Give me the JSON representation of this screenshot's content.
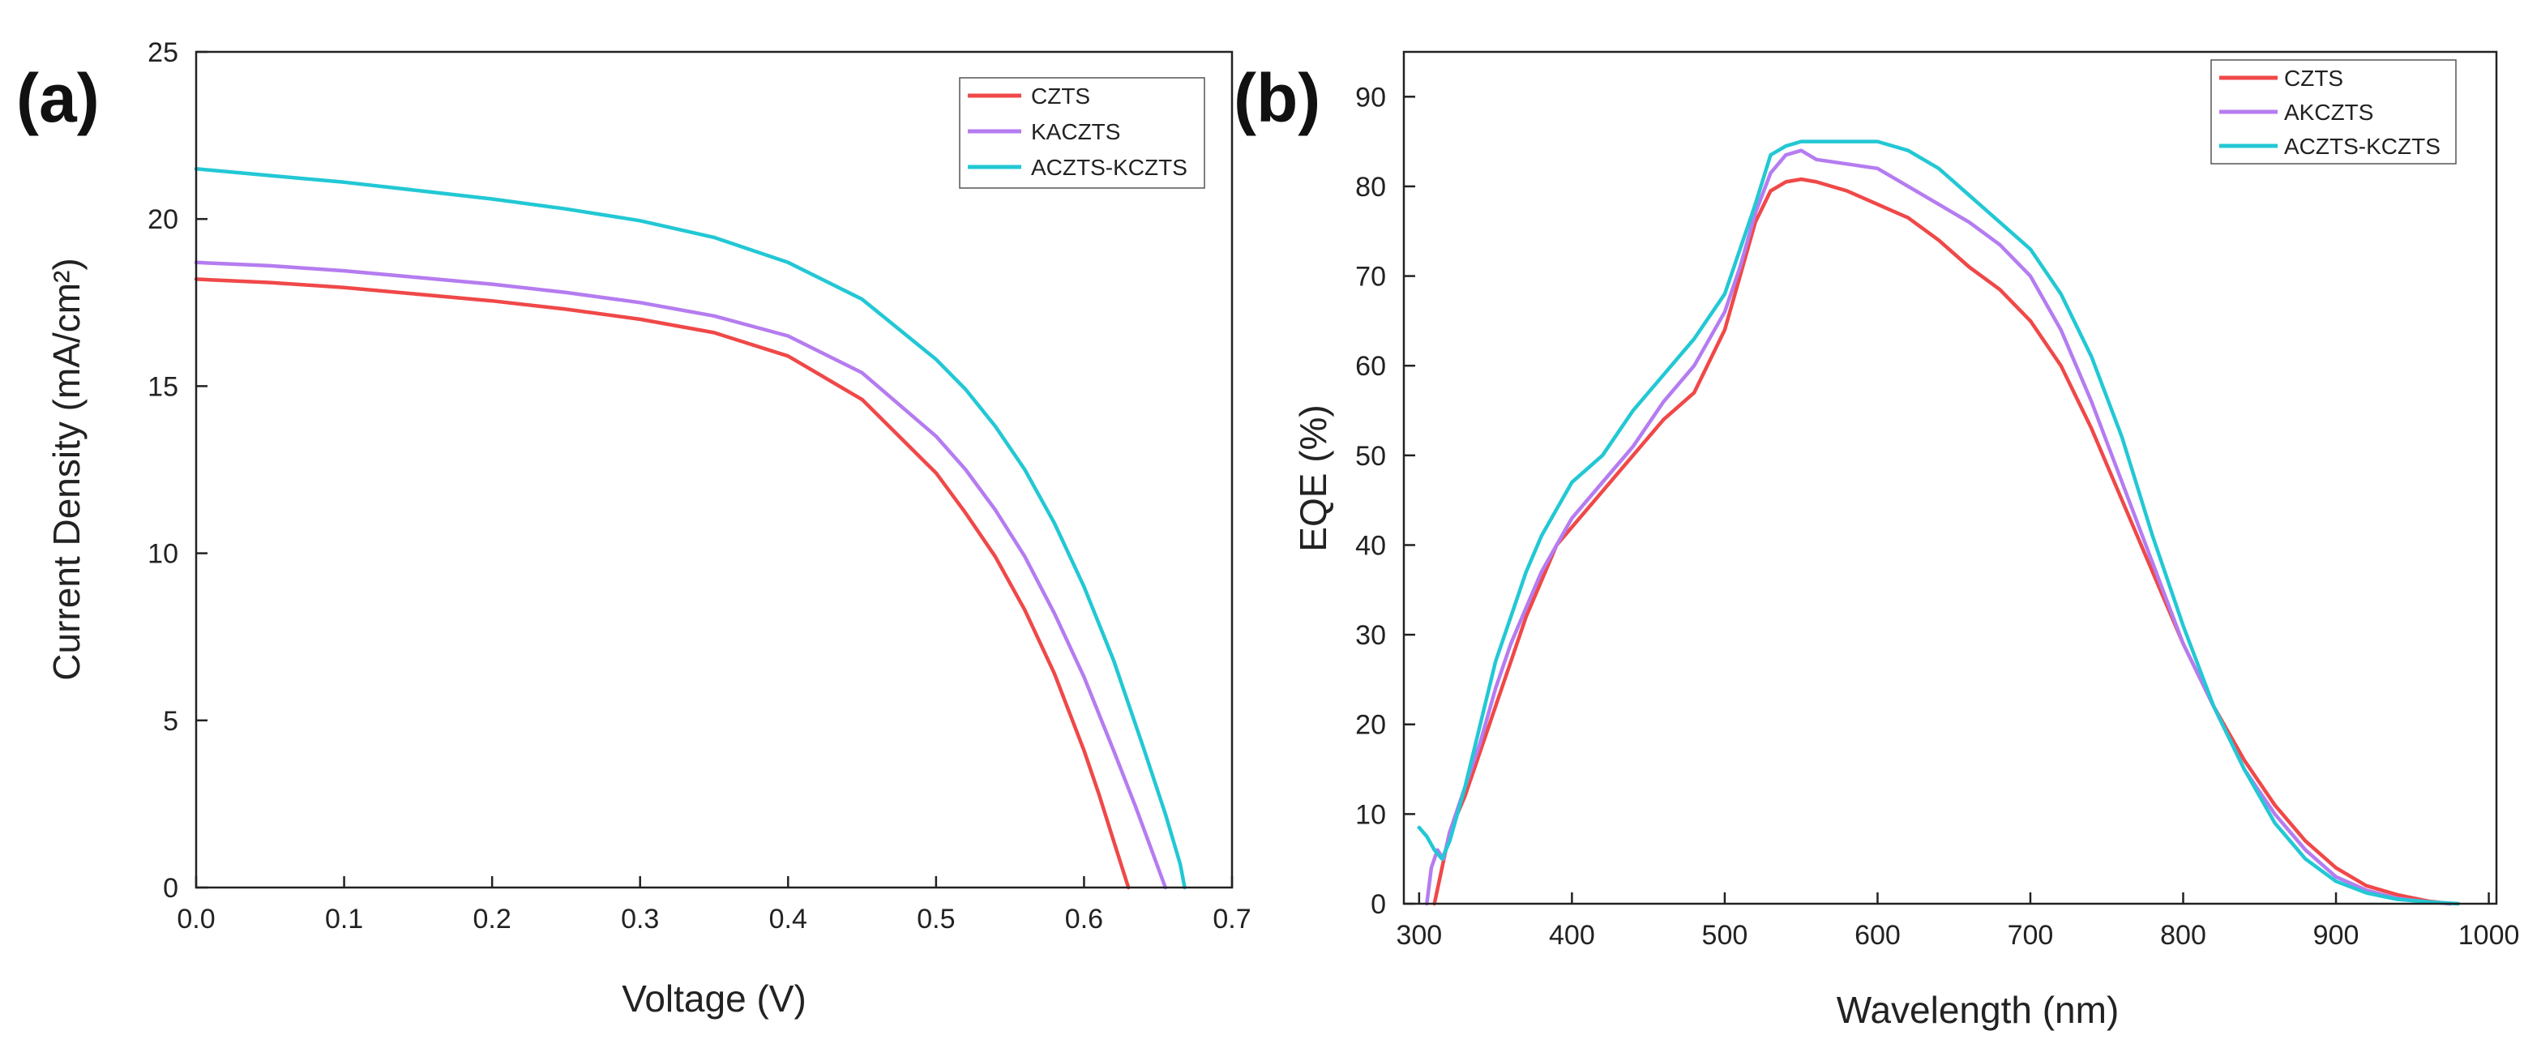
{
  "chart_data": [
    {
      "type": "line",
      "panel_label": "(a)",
      "title": "",
      "xlabel": "Voltage (V)",
      "ylabel": "Current Density (mA/cm²)",
      "xlim": [
        0,
        0.7
      ],
      "ylim": [
        0,
        25
      ],
      "xticks": [
        0.0,
        0.1,
        0.2,
        0.3,
        0.4,
        0.5,
        0.6,
        0.7
      ],
      "xtick_labels": [
        "0.0",
        "0.1",
        "0.2",
        "0.3",
        "0.4",
        "0.5",
        "0.6",
        "0.7"
      ],
      "yticks": [
        0,
        5,
        10,
        15,
        20,
        25
      ],
      "ytick_labels": [
        "0",
        "5",
        "10",
        "15",
        "20",
        "25"
      ],
      "legend_position": "top-right",
      "series": [
        {
          "name": "CZTS",
          "color": "#f04848",
          "x": [
            0,
            0.05,
            0.1,
            0.15,
            0.2,
            0.25,
            0.3,
            0.35,
            0.4,
            0.45,
            0.5,
            0.52,
            0.54,
            0.56,
            0.58,
            0.6,
            0.61,
            0.62,
            0.63
          ],
          "y": [
            18.2,
            18.1,
            17.95,
            17.75,
            17.55,
            17.3,
            17.0,
            16.6,
            15.9,
            14.6,
            12.4,
            11.2,
            9.9,
            8.3,
            6.4,
            4.1,
            2.8,
            1.4,
            0
          ]
        },
        {
          "name": "KACZTS",
          "color": "#b57cf0",
          "x": [
            0,
            0.05,
            0.1,
            0.15,
            0.2,
            0.25,
            0.3,
            0.35,
            0.4,
            0.45,
            0.5,
            0.52,
            0.54,
            0.56,
            0.58,
            0.6,
            0.62,
            0.635,
            0.645,
            0.655
          ],
          "y": [
            18.7,
            18.6,
            18.45,
            18.25,
            18.05,
            17.8,
            17.5,
            17.1,
            16.5,
            15.4,
            13.5,
            12.5,
            11.3,
            9.9,
            8.2,
            6.3,
            4.1,
            2.4,
            1.2,
            0
          ]
        },
        {
          "name": "ACZTS-KCZTS",
          "color": "#22c8d4",
          "x": [
            0,
            0.05,
            0.1,
            0.15,
            0.2,
            0.25,
            0.3,
            0.35,
            0.4,
            0.45,
            0.5,
            0.52,
            0.54,
            0.56,
            0.58,
            0.6,
            0.62,
            0.64,
            0.655,
            0.665,
            0.668
          ],
          "y": [
            21.5,
            21.3,
            21.1,
            20.85,
            20.6,
            20.3,
            19.95,
            19.45,
            18.7,
            17.6,
            15.8,
            14.9,
            13.8,
            12.5,
            10.9,
            9.0,
            6.8,
            4.2,
            2.2,
            0.7,
            0
          ]
        }
      ]
    },
    {
      "type": "line",
      "panel_label": "(b)",
      "title": "",
      "xlabel": "Wavelength (nm)",
      "ylabel": "EQE (%)",
      "xlim": [
        290,
        1005
      ],
      "ylim": [
        0,
        95
      ],
      "xticks": [
        300,
        400,
        500,
        600,
        700,
        800,
        900,
        1000
      ],
      "xtick_labels": [
        "300",
        "400",
        "500",
        "600",
        "700",
        "800",
        "900",
        "1000"
      ],
      "yticks": [
        0,
        10,
        20,
        30,
        40,
        50,
        60,
        70,
        80,
        90
      ],
      "ytick_labels": [
        "0",
        "10",
        "20",
        "30",
        "40",
        "50",
        "60",
        "70",
        "80",
        "90"
      ],
      "legend_position": "top-right",
      "series": [
        {
          "name": "CZTS",
          "color": "#f04848",
          "x": [
            310,
            315,
            320,
            330,
            340,
            350,
            360,
            370,
            380,
            390,
            400,
            420,
            440,
            460,
            480,
            500,
            510,
            520,
            530,
            540,
            550,
            560,
            580,
            600,
            620,
            640,
            660,
            680,
            700,
            720,
            740,
            760,
            780,
            800,
            820,
            840,
            860,
            880,
            900,
            920,
            940,
            960,
            975
          ],
          "y": [
            0,
            4,
            8,
            12,
            17,
            22,
            27,
            32,
            36,
            40,
            42,
            46,
            50,
            54,
            57,
            64,
            70,
            76,
            79.5,
            80.5,
            80.8,
            80.5,
            79.5,
            78,
            76.5,
            74,
            71,
            68.5,
            65,
            60,
            53,
            45,
            37,
            29,
            22,
            16,
            11,
            7,
            4,
            2,
            1,
            0.3,
            0
          ]
        },
        {
          "name": "AKCZTS",
          "color": "#b57cf0",
          "x": [
            305,
            308,
            312,
            316,
            320,
            330,
            340,
            350,
            360,
            370,
            380,
            390,
            400,
            420,
            440,
            460,
            480,
            500,
            510,
            520,
            530,
            540,
            550,
            560,
            580,
            600,
            620,
            640,
            660,
            680,
            700,
            720,
            740,
            760,
            780,
            800,
            820,
            840,
            860,
            880,
            900,
            920,
            940,
            960,
            975
          ],
          "y": [
            0,
            4,
            6,
            5,
            8,
            13,
            18,
            24,
            29,
            33,
            37,
            40,
            43,
            47,
            51,
            56,
            60,
            66,
            71,
            77,
            81.5,
            83.5,
            84,
            83,
            82.5,
            82,
            80,
            78,
            76,
            73.5,
            70,
            64,
            56,
            47,
            38,
            29,
            22,
            15,
            10,
            6,
            3,
            1.5,
            0.6,
            0.2,
            0
          ]
        },
        {
          "name": "ACZTS-KCZTS",
          "color": "#22c8d4",
          "x": [
            300,
            305,
            310,
            315,
            320,
            330,
            340,
            350,
            360,
            370,
            380,
            390,
            400,
            420,
            440,
            460,
            480,
            500,
            510,
            520,
            530,
            540,
            550,
            560,
            580,
            600,
            620,
            640,
            660,
            680,
            700,
            720,
            740,
            760,
            780,
            800,
            820,
            840,
            860,
            880,
            900,
            920,
            940,
            960,
            980
          ],
          "y": [
            8.5,
            7.5,
            6,
            5,
            7,
            13,
            20,
            27,
            32,
            37,
            41,
            44,
            47,
            50,
            55,
            59,
            63,
            68,
            73,
            78,
            83.5,
            84.5,
            85,
            85,
            85,
            85,
            84,
            82,
            79,
            76,
            73,
            68,
            61,
            52,
            41,
            31,
            22,
            15,
            9,
            5,
            2.5,
            1.2,
            0.5,
            0.2,
            0
          ]
        }
      ]
    }
  ]
}
